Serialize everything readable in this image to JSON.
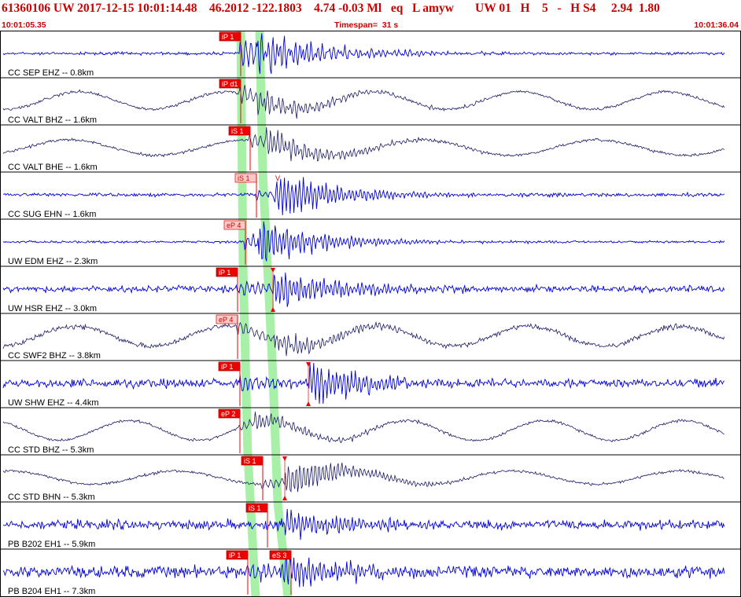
{
  "header": {
    "main": "61360106 UW 2017-12-15 10:01:14.48    46.2012 -122.1803    4.74 -0.03 Ml   eq   L amyw       UW 01   H    5   -   H S4     2.94  1.80",
    "start_time": "10:01:05.35",
    "timespan": "Timespan=  31 s",
    "end_time": "10:01:36.04"
  },
  "colors": {
    "header_text": "#cc0000",
    "trace_blue": "#0000dd",
    "trace_navy": "#1a1a66",
    "pick_fill": "#ee0000",
    "pick_light": "#ffc8c8",
    "window_green": "#a8f0a8"
  },
  "channels": [
    {
      "label": "CC SEP EHZ -- 0.8km",
      "pick": "iP 1",
      "pick_style": "solid",
      "marker": ""
    },
    {
      "label": "CC VALT BHZ -- 1.6km",
      "pick": "iP d1",
      "pick_style": "solid",
      "marker": ""
    },
    {
      "label": "CC VALT BHE -- 1.6km",
      "pick": "iS 1",
      "pick_style": "solid",
      "marker": ""
    },
    {
      "label": "CC SUG EHN -- 1.6km",
      "pick": "iS 1",
      "pick_style": "light",
      "marker": "V"
    },
    {
      "label": "UW EDM EHZ -- 2.3km",
      "pick": "eP 4",
      "pick_style": "light",
      "marker": ""
    },
    {
      "label": "UW HSR EHZ -- 3.0km",
      "pick": "iP 1",
      "pick_style": "solid",
      "marker": "triangle"
    },
    {
      "label": "CC SWF2 BHZ -- 3.8km",
      "pick": "eP 4",
      "pick_style": "light",
      "marker": ""
    },
    {
      "label": "UW SHW EHZ -- 4.4km",
      "pick": "iP 1",
      "pick_style": "solid",
      "marker": "triangle"
    },
    {
      "label": "CC STD BHZ -- 5.3km",
      "pick": "eP 2",
      "pick_style": "solid",
      "marker": ""
    },
    {
      "label": "CC STD BHN -- 5.3km",
      "pick": "iS 1",
      "pick_style": "solid",
      "marker": "triangle"
    },
    {
      "label": "PB B202 EH1 -- 5.9km",
      "pick": "iS 1",
      "pick_style": "solid",
      "marker": ""
    },
    {
      "label": "PB B204 EH1 -- 7.3km",
      "pick": "iP 1",
      "pick_style": "solid",
      "marker": "",
      "pick2": "eS 3"
    }
  ]
}
